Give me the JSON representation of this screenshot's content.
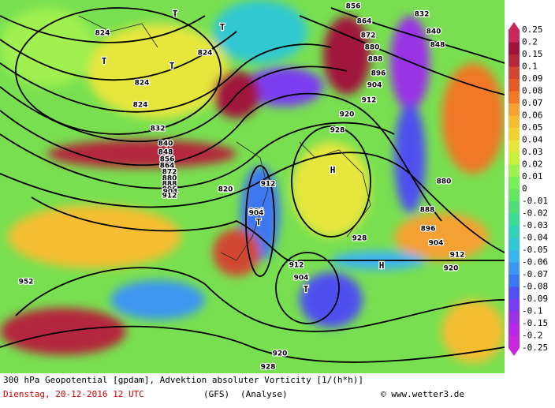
{
  "map": {
    "caption": {
      "line1": "300 hPa Geopotential [gpdam], Advektion absoluter Vorticity [1/(h*h)]",
      "date": "Dienstag, 20-12-2016  12 UTC",
      "model": "(GFS)",
      "run": "(Analyse)",
      "credit": "© www.wetter3.de"
    },
    "colorbar": {
      "labels": [
        "0.25",
        "0.2",
        "0.15",
        "0.1",
        "0.09",
        "0.08",
        "0.07",
        "0.06",
        "0.05",
        "0.04",
        "0.03",
        "0.02",
        "0.01",
        "0",
        "-0.01",
        "-0.02",
        "-0.03",
        "-0.04",
        "-0.05",
        "-0.06",
        "-0.07",
        "-0.08",
        "-0.09",
        "-0.1",
        "-0.15",
        "-0.2",
        "-0.25"
      ],
      "colors": [
        "#c8285a",
        "#a0143c",
        "#b4283c",
        "#d24632",
        "#e65a28",
        "#f07828",
        "#f5a032",
        "#f5be32",
        "#f0d232",
        "#e6e63c",
        "#c8f03c",
        "#a0f050",
        "#78f05a",
        "#64e664",
        "#50dc78",
        "#3cdc96",
        "#32d2b4",
        "#32c8d2",
        "#3cb4f0",
        "#3c96f0",
        "#3c78f0",
        "#5050f0",
        "#7a3cf0",
        "#9a32e6",
        "#b428e6",
        "#c828dc"
      ]
    },
    "pressure_labels": [
      "824",
      "824",
      "824",
      "824",
      "832",
      "840",
      "848",
      "856",
      "864",
      "872",
      "880",
      "888",
      "896",
      "904",
      "912",
      "920",
      "928",
      "912",
      "904",
      "912",
      "912",
      "928",
      "920",
      "928",
      "904",
      "952",
      "864",
      "872",
      "880",
      "888",
      "896",
      "904",
      "856",
      "848",
      "840",
      "832",
      "880",
      "888",
      "896",
      "904",
      "912",
      "920",
      "928",
      "820",
      "904"
    ],
    "centers": [
      "T",
      "T",
      "T",
      "T",
      "T",
      "H",
      "H",
      "T"
    ]
  }
}
